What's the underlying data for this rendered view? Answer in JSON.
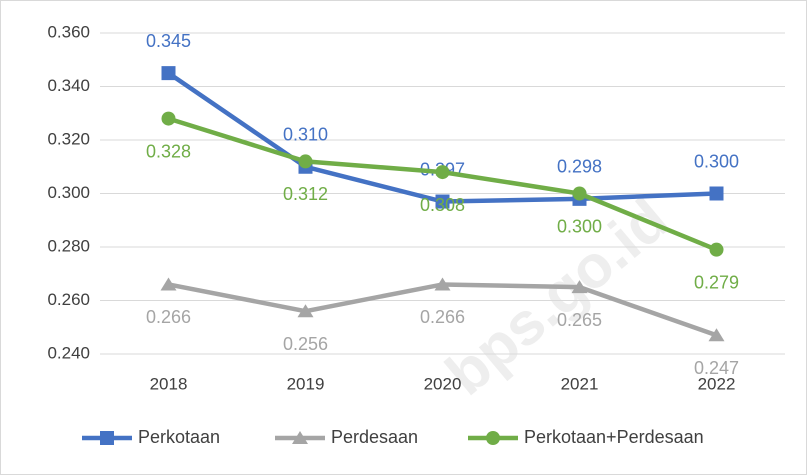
{
  "chart_data": {
    "type": "line",
    "categories": [
      "2018",
      "2019",
      "2020",
      "2021",
      "2022"
    ],
    "series": [
      {
        "name": "Perkotaan",
        "color": "#4472c4",
        "marker": "square",
        "values": [
          0.345,
          0.31,
          0.297,
          0.298,
          0.3
        ],
        "value_labels": [
          "0.345",
          "0.310",
          "0.297",
          "0.298",
          "0.300"
        ]
      },
      {
        "name": "Perdesaan",
        "color": "#a5a5a5",
        "marker": "triangle",
        "values": [
          0.266,
          0.256,
          0.266,
          0.265,
          0.247
        ],
        "value_labels": [
          "0.266",
          "0.256",
          "0.266",
          "0.265",
          "0.247"
        ]
      },
      {
        "name": "Perkotaan+Perdesaan",
        "color": "#70ad47",
        "marker": "circle",
        "values": [
          0.328,
          0.312,
          0.308,
          0.3,
          0.279
        ],
        "value_labels": [
          "0.328",
          "0.312",
          "0.308",
          "0.300",
          "0.279"
        ]
      }
    ],
    "ylim": [
      0.24,
      0.36
    ],
    "yticks": [
      {
        "value": 0.24,
        "label": "0.240"
      },
      {
        "value": 0.26,
        "label": "0.260"
      },
      {
        "value": 0.28,
        "label": "0.280"
      },
      {
        "value": 0.3,
        "label": "0.300"
      },
      {
        "value": 0.32,
        "label": "0.320"
      },
      {
        "value": 0.34,
        "label": "0.340"
      },
      {
        "value": 0.36,
        "label": "0.360"
      }
    ],
    "grid": true,
    "legend": "bottom",
    "watermark": "bps.go.id"
  }
}
